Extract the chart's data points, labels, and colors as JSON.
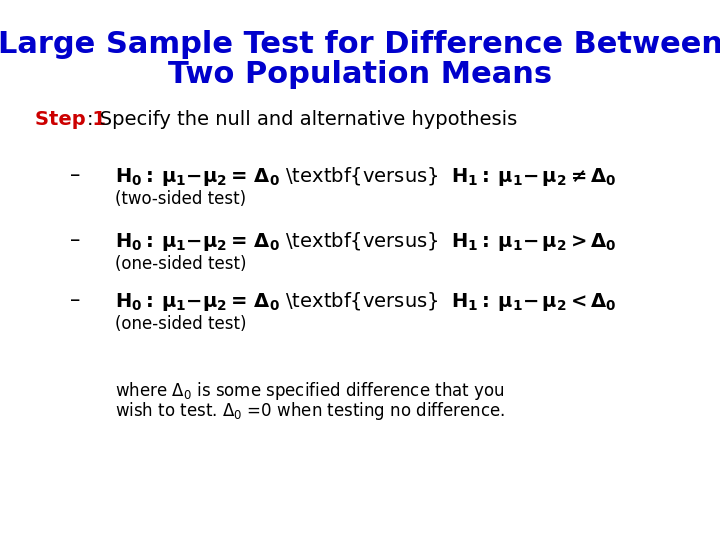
{
  "title_line1": "Large Sample Test for Difference Between",
  "title_line2": "Two Population Means",
  "title_color": "#0000CC",
  "title_fontsize": 22,
  "bg_color": "#FFFFFF",
  "step_label": "Step 1",
  "step_color": "#CC0000",
  "step_text": ": Specify the null and alternative hypothesis",
  "step_fontsize": 14,
  "items": [
    {
      "formula": "$\\mathbf{H_0{:}\\: \\mu_1{-}\\mu_2{=}\\, \\Delta_0}$ \\textbf{versus}  $\\mathbf{H_1{:}\\: \\mu_1{-}\\, \\mu_2{\\neq}\\Delta_0}$",
      "note": "(two-sided test)"
    },
    {
      "formula": "$\\mathbf{H_0{:}\\: \\mu_1{-}\\mu_2{=}\\, \\Delta_0}$ \\textbf{versus}  $\\mathbf{H_1{:}\\: \\mu_1{-}\\, \\mu_2{>}\\Delta_0}$",
      "note": "(one-sided test)"
    },
    {
      "formula": "$\\mathbf{H_0{:}\\: \\mu_1{-}\\mu_2{=}\\, \\Delta_0}$ \\textbf{versus}  $\\mathbf{H_1{:}\\: \\mu_1{-}\\, \\mu_2{<}\\Delta_0}$",
      "note": "(one-sided test)"
    }
  ],
  "where_line1": "where $\\Delta_0$ is some specified difference that you",
  "where_line2": "wish to test. $\\Delta_0$ =0 when testing no difference.",
  "formula_fontsize": 14,
  "note_fontsize": 12,
  "where_fontsize": 12
}
